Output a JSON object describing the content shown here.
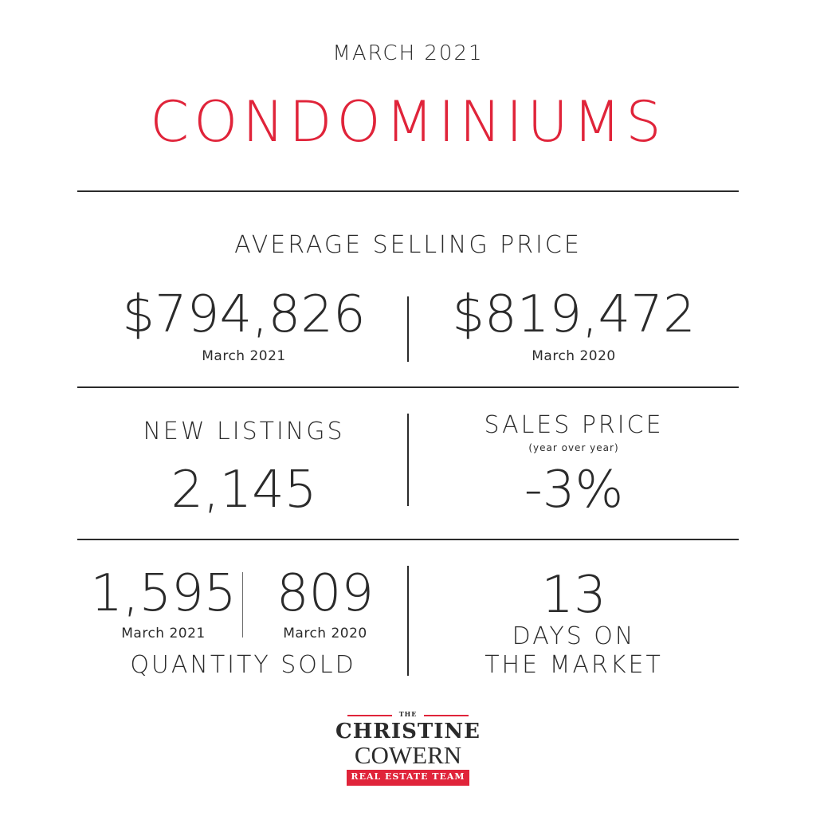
{
  "header": {
    "period": "MARCH 2021",
    "title": "CONDOMINIUMS"
  },
  "average_selling_price": {
    "label": "AVERAGE SELLING PRICE",
    "current_value": "$794,826",
    "current_caption": "March 2021",
    "previous_value": "$819,472",
    "previous_caption": "March 2020"
  },
  "new_listings": {
    "label": "NEW LISTINGS",
    "value": "2,145"
  },
  "sales_price": {
    "label": "SALES PRICE",
    "sublabel": "(year over year)",
    "value": "-3%"
  },
  "quantity_sold": {
    "current_value": "1,595",
    "current_caption": "March 2021",
    "previous_value": "809",
    "previous_caption": "March 2020",
    "label": "QUANTITY SOLD"
  },
  "days_on_market": {
    "value": "13",
    "label_line1": "DAYS ON",
    "label_line2": "THE MARKET"
  },
  "logo": {
    "small": "THE",
    "line1": "CHRISTINE",
    "line2": "COWERN",
    "band": "REAL ESTATE TEAM"
  },
  "colors": {
    "accent": "#e0243a",
    "text": "#2b2b2b"
  }
}
